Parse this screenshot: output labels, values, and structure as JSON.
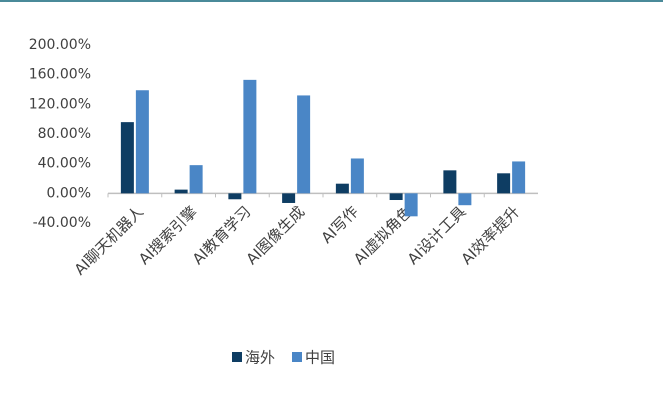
{
  "chart_data": {
    "type": "bar",
    "categories": [
      "AI聊天机器人",
      "AI搜索引擎",
      "AI教育学习",
      "AI图像生成",
      "AI写作",
      "AI虚拟角色",
      "AI设计工具",
      "AI效率提升"
    ],
    "series": [
      {
        "name": "海外",
        "color": "#0e3d63",
        "values": [
          96,
          5,
          -8,
          -13,
          13,
          -9,
          31,
          27
        ]
      },
      {
        "name": "中国",
        "color": "#4a86c6",
        "values": [
          139,
          38,
          153,
          132,
          47,
          -31,
          -16,
          43
        ]
      }
    ],
    "ylim": [
      -40,
      200
    ],
    "yticks": [
      {
        "value": -40,
        "label": "-40.00%"
      },
      {
        "value": 0,
        "label": "0.00%"
      },
      {
        "value": 40,
        "label": "40.00%"
      },
      {
        "value": 80,
        "label": "80.00%"
      },
      {
        "value": 120,
        "label": "120.00%"
      },
      {
        "value": 160,
        "label": "160.00%"
      },
      {
        "value": 200,
        "label": "200.00%"
      }
    ],
    "grid": false,
    "legend": "bottom"
  }
}
